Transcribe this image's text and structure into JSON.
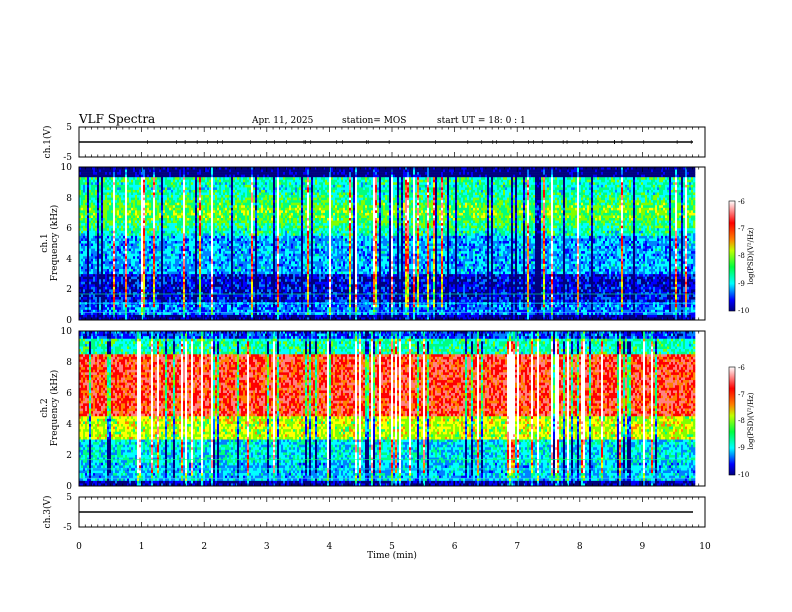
{
  "header": {
    "title": "VLF Spectra",
    "date": "Apr. 11, 2025",
    "station": "station= MOS",
    "start": "start  UT =   18: 0  : 1"
  },
  "chart_data": {
    "type": "heatmap",
    "xlabel": "Time  (min)",
    "xlim": [
      0,
      10
    ],
    "xticks": [
      "0",
      "1",
      "2",
      "3",
      "4",
      "5",
      "6",
      "7",
      "8",
      "9",
      "10"
    ],
    "data_end_min": 9.82,
    "panels": [
      {
        "name": "ch.1(V)",
        "kind": "waveform",
        "ylim": [
          -5,
          5
        ],
        "yticks": [
          "5",
          "-5"
        ],
        "level": 0
      },
      {
        "name": "ch.1 spectrogram",
        "kind": "spectrogram",
        "ylabel_1": "ch.1",
        "ylabel_2": "Frequency  (kHz)",
        "ylim": [
          0,
          10
        ],
        "yticks": [
          "0",
          "2",
          "4",
          "6",
          "8",
          "10"
        ],
        "colorbar": {
          "label": "log(PSD)(V²/Hz)",
          "range": [
            -10,
            -6
          ],
          "ticks": [
            "-6",
            "-7",
            "-8",
            "-9",
            "-10"
          ]
        }
      },
      {
        "name": "ch.2 spectrogram",
        "kind": "spectrogram",
        "ylabel_1": "ch.2",
        "ylabel_2": "Frequency  (kHz)",
        "ylim": [
          0,
          10
        ],
        "yticks": [
          "0",
          "2",
          "4",
          "6",
          "8",
          "10"
        ],
        "colorbar": {
          "label": "log(PSD)(V²/Hz)",
          "range": [
            -10,
            -6
          ],
          "ticks": [
            "-6",
            "-7",
            "-8",
            "-9",
            "-10"
          ]
        }
      },
      {
        "name": "ch.3(V)",
        "kind": "waveform",
        "ylim": [
          -5,
          5
        ],
        "yticks": [
          "5",
          "-5"
        ],
        "level": 0
      }
    ],
    "colormap": [
      "#00007f",
      "#0000ff",
      "#0080ff",
      "#00ffff",
      "#00ff80",
      "#80ff00",
      "#ffff00",
      "#ff8000",
      "#ff0000",
      "#ff8080",
      "#ffffff"
    ]
  }
}
